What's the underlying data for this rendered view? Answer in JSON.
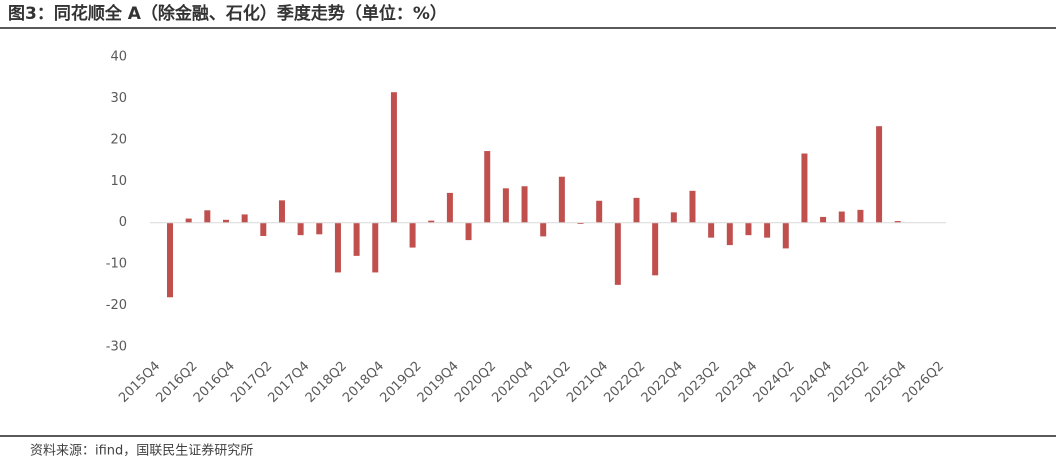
{
  "chart_data": {
    "type": "bar",
    "title": "图3：同花顺全 A（除金融、石化）季度走势（单位：%）",
    "source": "资料来源：ifind，国联民生证券研究所",
    "categories": [
      "2015Q4",
      null,
      "2016Q2",
      null,
      "2016Q4",
      null,
      "2017Q2",
      null,
      "2017Q4",
      null,
      "2018Q2",
      null,
      "2018Q4",
      null,
      "2019Q2",
      null,
      "2019Q4",
      null,
      "2020Q2",
      null,
      "2020Q4",
      null,
      "2021Q2",
      null,
      "2021Q4",
      null,
      "2022Q2",
      null,
      "2022Q4",
      null,
      "2023Q2",
      null,
      "2023Q4",
      null,
      "2024Q2",
      null,
      "2024Q4",
      null,
      "2025Q2",
      null,
      "2025Q4",
      null,
      "2026Q2"
    ],
    "values": [
      -18,
      1,
      3,
      0.7,
      2,
      -3.2,
      5.4,
      -3,
      -2.8,
      -12,
      -8,
      -12,
      31.5,
      -6,
      0.5,
      7.2,
      -4.2,
      17.3,
      8.3,
      8.8,
      -3.3,
      11.1,
      -0.3,
      5.3,
      -15,
      6,
      -12.7,
      2.5,
      7.7,
      -3.6,
      -5.4,
      -3,
      -3.6,
      -6.2,
      16.7,
      1.4,
      2.7,
      3.1,
      23.3,
      0.4,
      null,
      null,
      null
    ],
    "color": "#c0504d",
    "ylim": [
      -30,
      40
    ],
    "yticks": [
      -30,
      -20,
      -10,
      0,
      10,
      20,
      30,
      40
    ],
    "grid": false
  }
}
